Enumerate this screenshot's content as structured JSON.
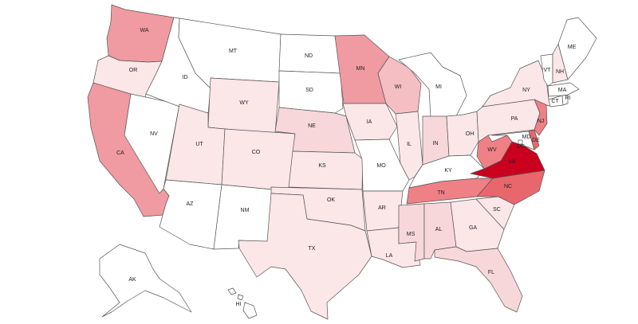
{
  "map": {
    "palette": {
      "none": "#ffffff",
      "very_light": "#fbe6e8",
      "light": "#f7d7da",
      "medium_light": "#f5bec3",
      "medium": "#f09aa1",
      "medium_dark": "#ef8086",
      "dark": "#e8676d",
      "darkest": "#c9001e"
    },
    "states": {
      "WA": {
        "label": "WA",
        "shade": "medium"
      },
      "OR": {
        "label": "OR",
        "shade": "very_light"
      },
      "CA": {
        "label": "CA",
        "shade": "medium"
      },
      "NV": {
        "label": "NV",
        "shade": "none"
      },
      "ID": {
        "label": "ID",
        "shade": "none"
      },
      "MT": {
        "label": "MT",
        "shade": "none"
      },
      "WY": {
        "label": "WY",
        "shade": "very_light"
      },
      "UT": {
        "label": "UT",
        "shade": "very_light"
      },
      "AZ": {
        "label": "AZ",
        "shade": "none"
      },
      "CO": {
        "label": "CO",
        "shade": "very_light"
      },
      "NM": {
        "label": "NM",
        "shade": "none"
      },
      "ND": {
        "label": "ND",
        "shade": "none"
      },
      "SD": {
        "label": "SD",
        "shade": "none"
      },
      "NE": {
        "label": "NE",
        "shade": "light"
      },
      "KS": {
        "label": "KS",
        "shade": "very_light"
      },
      "OK": {
        "label": "OK",
        "shade": "very_light"
      },
      "TX": {
        "label": "TX",
        "shade": "very_light"
      },
      "MN": {
        "label": "MN",
        "shade": "medium"
      },
      "IA": {
        "label": "IA",
        "shade": "very_light"
      },
      "MO": {
        "label": "MO",
        "shade": "none"
      },
      "AR": {
        "label": "AR",
        "shade": "very_light"
      },
      "LA": {
        "label": "LA",
        "shade": "very_light"
      },
      "WI": {
        "label": "WI",
        "shade": "medium_light"
      },
      "IL": {
        "label": "IL",
        "shade": "very_light"
      },
      "MI": {
        "label": "MI",
        "shade": "none"
      },
      "IN": {
        "label": "IN",
        "shade": "light"
      },
      "OH": {
        "label": "OH",
        "shade": "very_light"
      },
      "KY": {
        "label": "KY",
        "shade": "none"
      },
      "TN": {
        "label": "TN",
        "shade": "medium_dark"
      },
      "MS": {
        "label": "MS",
        "shade": "light"
      },
      "AL": {
        "label": "AL",
        "shade": "light"
      },
      "GA": {
        "label": "GA",
        "shade": "very_light"
      },
      "FL": {
        "label": "FL",
        "shade": "light"
      },
      "SC": {
        "label": "SC",
        "shade": "very_light"
      },
      "NC": {
        "label": "NC",
        "shade": "dark"
      },
      "VA": {
        "label": "VA",
        "shade": "darkest"
      },
      "WV": {
        "label": "WV",
        "shade": "medium_dark"
      },
      "MD": {
        "label": "MD",
        "shade": "none"
      },
      "DE": {
        "label": "DE",
        "shade": "dark"
      },
      "PA": {
        "label": "PA",
        "shade": "very_light"
      },
      "NJ": {
        "label": "NJ",
        "shade": "medium_dark"
      },
      "NY": {
        "label": "NY",
        "shade": "very_light"
      },
      "CT": {
        "label": "CT",
        "shade": "none"
      },
      "RI": {
        "label": "RI",
        "shade": "none"
      },
      "MA": {
        "label": "MA",
        "shade": "none"
      },
      "VT": {
        "label": "VT",
        "shade": "none"
      },
      "NH": {
        "label": "NH",
        "shade": "very_light"
      },
      "ME": {
        "label": "ME",
        "shade": "none"
      },
      "DC": {
        "label": "DC",
        "shade": "none"
      },
      "AK": {
        "label": "AK",
        "shade": "none"
      },
      "HI": {
        "label": "HI",
        "shade": "none"
      }
    }
  }
}
